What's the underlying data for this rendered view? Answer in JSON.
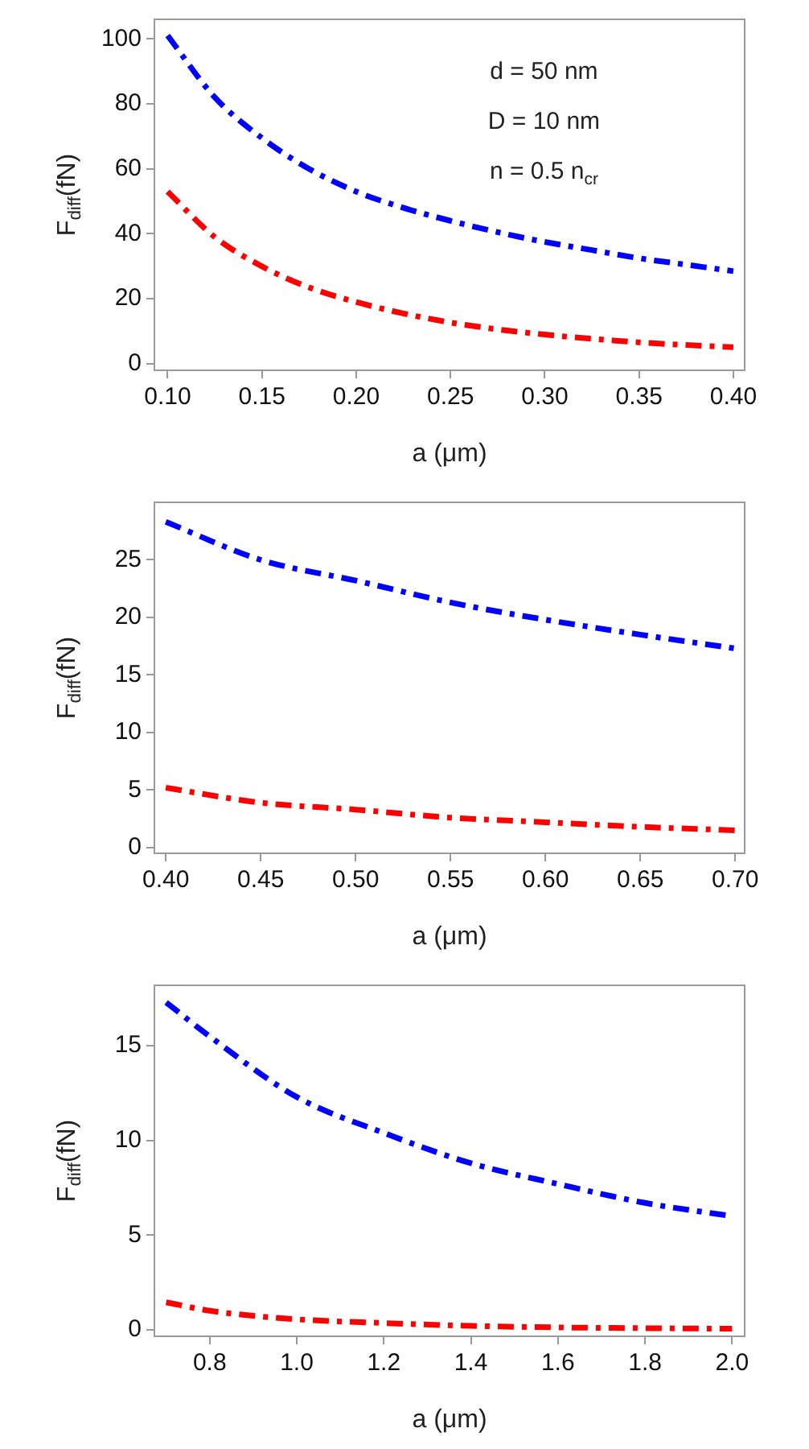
{
  "chart_data": [
    {
      "type": "line",
      "ylabel": "F$_{diff}$(fN)",
      "xlabel": "a (μm)",
      "annotations": [
        "d = 50 nm",
        "D = 10 nm",
        "n = 0.5 n$_{cr}$"
      ],
      "x": [
        0.1,
        0.125,
        0.15,
        0.175,
        0.2,
        0.225,
        0.25,
        0.275,
        0.3,
        0.325,
        0.35,
        0.375,
        0.4
      ],
      "series": [
        {
          "color": "#0000ff",
          "values": [
            101,
            82,
            69.5,
            60,
            53,
            48,
            44,
            40.5,
            37.5,
            35,
            32.5,
            30.5,
            28.5
          ]
        },
        {
          "color": "#ff0000",
          "values": [
            53,
            39,
            30,
            23.5,
            19,
            15.5,
            12.7,
            10.6,
            9,
            7.7,
            6.6,
            5.8,
            5.1
          ]
        }
      ],
      "xlim": [
        0.093,
        0.406
      ],
      "xticks": [
        {
          "value": 0.1,
          "label": "0.10"
        },
        {
          "value": 0.15,
          "label": "0.15"
        },
        {
          "value": 0.2,
          "label": "0.20"
        },
        {
          "value": 0.25,
          "label": "0.25"
        },
        {
          "value": 0.3,
          "label": "0.30"
        },
        {
          "value": 0.35,
          "label": "0.35"
        },
        {
          "value": 0.4,
          "label": "0.40"
        }
      ],
      "ylim": [
        -2,
        106
      ],
      "yticks": [
        0,
        20,
        40,
        60,
        80,
        100
      ],
      "legend": false,
      "marker": "none",
      "line_style": "dashed"
    },
    {
      "type": "line",
      "ylabel": "F$_{diff}$(fN)",
      "xlabel": "a (μm)",
      "x": [
        0.4,
        0.45,
        0.5,
        0.55,
        0.6,
        0.65,
        0.7
      ],
      "series": [
        {
          "color": "#0000ff",
          "values": [
            28.3,
            25,
            23.2,
            21.3,
            19.8,
            18.5,
            17.3
          ]
        },
        {
          "color": "#ff0000",
          "values": [
            5.2,
            3.9,
            3.3,
            2.6,
            2.2,
            1.8,
            1.5
          ]
        }
      ],
      "xlim": [
        0.394,
        0.705
      ],
      "xticks": [
        {
          "value": 0.4,
          "label": "0.40"
        },
        {
          "value": 0.45,
          "label": "0.45"
        },
        {
          "value": 0.5,
          "label": "0.50"
        },
        {
          "value": 0.55,
          "label": "0.55"
        },
        {
          "value": 0.6,
          "label": "0.60"
        },
        {
          "value": 0.65,
          "label": "0.65"
        },
        {
          "value": 0.7,
          "label": "0.70"
        }
      ],
      "ylim": [
        -0.5,
        30
      ],
      "yticks": [
        0,
        5,
        10,
        15,
        20,
        25
      ],
      "legend": false,
      "marker": "none",
      "line_style": "dashed"
    },
    {
      "type": "line",
      "ylabel": "F$_{diff}$(fN)",
      "xlabel": "a (μm)",
      "x": [
        0.7,
        0.8,
        1.0,
        1.2,
        1.4,
        1.6,
        1.8,
        2.0
      ],
      "series": [
        {
          "color": "#0000ff",
          "values": [
            17.3,
            15.5,
            12.3,
            10.4,
            8.8,
            7.7,
            6.7,
            6
          ]
        },
        {
          "color": "#ff0000",
          "values": [
            1.45,
            1,
            0.55,
            0.35,
            0.2,
            0.12,
            0.08,
            0.05
          ]
        }
      ],
      "xlim": [
        0.673,
        2.029
      ],
      "xticks": [
        0.8,
        {
          "value": 1,
          "label": "1.0"
        },
        1.2,
        1.4,
        1.6,
        1.8,
        {
          "value": 2,
          "label": "2.0"
        }
      ],
      "ylim": [
        -0.35,
        18.2
      ],
      "yticks": [
        0,
        5,
        10,
        15
      ],
      "legend": false,
      "marker": "none",
      "line_style": "dashed"
    }
  ]
}
